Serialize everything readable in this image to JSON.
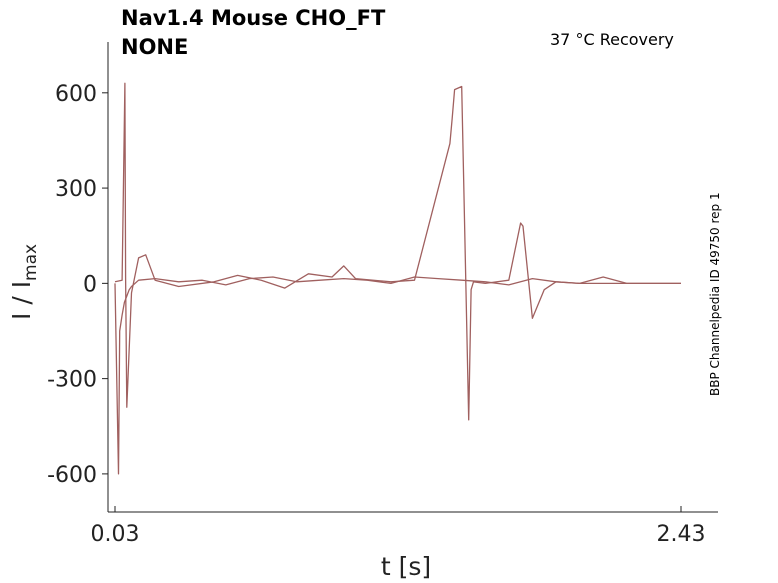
{
  "header": {
    "title_line1": "Nav1.4  Mouse  CHO_FT",
    "title_line2": "NONE",
    "condition": "37 °C  Recovery",
    "source_id": "BBP Channelpedia ID 49750 rep 1"
  },
  "chart_data": {
    "type": "line",
    "xlabel": "t [s]",
    "ylabel_main": "I / I",
    "ylabel_sub": "max",
    "xlim": [
      0.03,
      2.43
    ],
    "ylim": [
      -720,
      760
    ],
    "x_ticks": [
      "0.03",
      "2.43"
    ],
    "x_tick_values": [
      0.03,
      2.43
    ],
    "y_ticks": [
      "600",
      "300",
      "0",
      "-300",
      "-600"
    ],
    "y_tick_values": [
      600,
      300,
      0,
      -300,
      -600
    ],
    "grid": false,
    "series_color": "#a0605f",
    "series": [
      {
        "x": [
          0.03,
          0.045,
          0.05,
          0.06,
          0.07,
          0.08,
          0.09,
          0.1,
          0.13,
          0.2,
          0.3,
          0.4,
          0.5,
          0.6,
          0.7,
          0.8,
          0.9,
          1.0,
          1.1,
          1.2,
          1.3,
          1.4,
          1.5,
          1.6,
          1.7,
          1.8,
          1.9,
          2.0,
          2.1,
          2.2,
          2.3,
          2.43
        ],
        "values": [
          0,
          -600,
          -150,
          -100,
          -60,
          -40,
          -20,
          -10,
          10,
          15,
          5,
          10,
          -5,
          15,
          20,
          5,
          10,
          15,
          10,
          0,
          20,
          15,
          10,
          5,
          -5,
          15,
          5,
          0,
          0,
          0,
          0,
          0
        ]
      },
      {
        "x": [
          0.03,
          0.06,
          0.072,
          0.075,
          0.08,
          0.1,
          0.13,
          0.16,
          0.2,
          0.3,
          0.45,
          0.55,
          0.65,
          0.75,
          0.85,
          0.95,
          1.0,
          1.05,
          1.2,
          1.3,
          1.45,
          1.46,
          1.47,
          1.5,
          1.53,
          1.54,
          1.55,
          1.6,
          1.7,
          1.75,
          1.76,
          1.8,
          1.85,
          1.9,
          2.0,
          2.1,
          2.2,
          2.3,
          2.43
        ],
        "values": [
          5,
          10,
          630,
          20,
          -390,
          -30,
          80,
          90,
          10,
          -10,
          5,
          25,
          10,
          -15,
          30,
          20,
          55,
          15,
          5,
          10,
          440,
          520,
          610,
          620,
          -430,
          -20,
          5,
          0,
          10,
          190,
          180,
          -110,
          -20,
          5,
          0,
          20,
          0,
          0,
          0
        ]
      }
    ]
  }
}
